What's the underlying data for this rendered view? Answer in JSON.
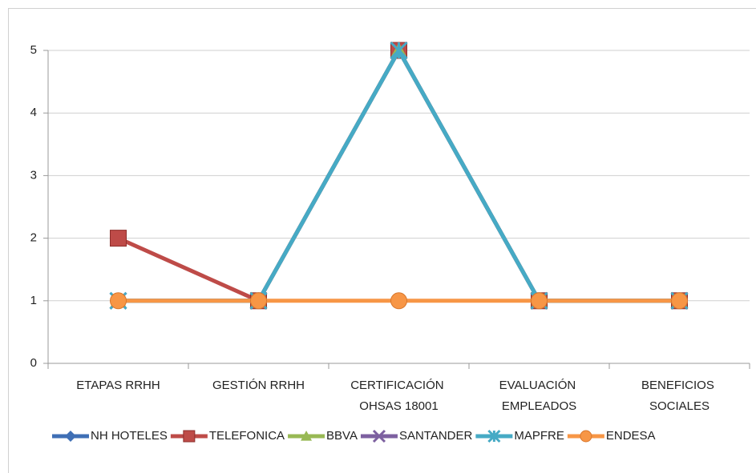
{
  "chart_data": {
    "type": "line",
    "categories": [
      "ETAPAS RRHH",
      "GESTIÓN RRHH",
      "CERTIFICACIÓN OHSAS 18001",
      "EVALUACIÓN EMPLEADOS",
      "BENEFICIOS SOCIALES"
    ],
    "series": [
      {
        "name": "NH HOTELES",
        "color": "#3f6fb5",
        "marker": "diamond",
        "values": [
          1,
          1,
          5,
          1,
          1
        ]
      },
      {
        "name": "TELEFONICA",
        "color": "#be4b48",
        "marker": "square",
        "values": [
          2,
          1,
          5,
          1,
          1
        ]
      },
      {
        "name": "BBVA",
        "color": "#98b954",
        "marker": "triangle",
        "values": [
          1,
          1,
          5,
          1,
          1
        ]
      },
      {
        "name": "SANTANDER",
        "color": "#7d60a0",
        "marker": "x",
        "values": [
          1,
          1,
          5,
          1,
          1
        ]
      },
      {
        "name": "MAPFRE",
        "color": "#46aac5",
        "marker": "star",
        "values": [
          1,
          1,
          5,
          1,
          1
        ]
      },
      {
        "name": "ENDESA",
        "color": "#f79646",
        "marker": "circle",
        "values": [
          1,
          1,
          1,
          1,
          1
        ]
      }
    ],
    "ylim": [
      0,
      5
    ],
    "yticks": [
      0,
      1,
      2,
      3,
      4,
      5
    ],
    "grid": true,
    "legend": "bottom"
  }
}
